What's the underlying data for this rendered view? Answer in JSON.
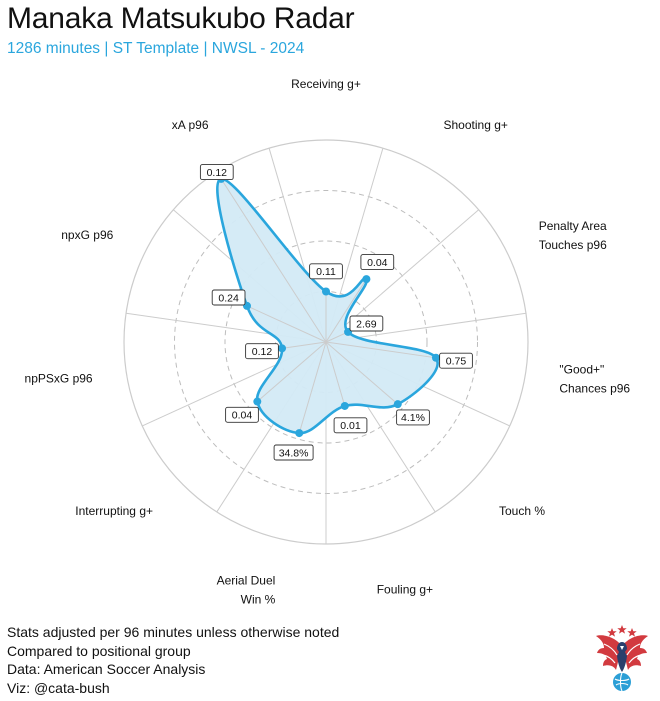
{
  "header": {
    "title": "Manaka Matsukubo Radar",
    "subtitle": "1286 minutes | ST Template | NWSL - 2024"
  },
  "footer_notes": [
    "Stats adjusted per 96 minutes unless otherwise noted",
    "Compared to positional group",
    "Data: American Soccer Analysis",
    "Viz: @cata-bush"
  ],
  "colors": {
    "accent": "#2aa6dd",
    "fill": "#d3eaf6",
    "grid": "#cccccc",
    "grid_dashed": "#bdbdbd",
    "logo_red": "#d23a3f",
    "logo_blue": "#2b9fd6"
  },
  "logo_icon": "eagle-soccer-ball-logo",
  "chart_data": {
    "type": "radar",
    "title": "Manaka Matsukubo Radar",
    "subtitle": "1286 minutes | ST Template | NWSL - 2024",
    "rlim": [
      0,
      100
    ],
    "grid": "dashed rings at 25, 50, 75; solid outer ring at 100",
    "categories": [
      [
        "Receiving g+"
      ],
      [
        "Shooting g+"
      ],
      [
        "Penalty Area",
        "Touches p96"
      ],
      [
        "\"Good+\"",
        "Chances p96"
      ],
      [
        "Touch %"
      ],
      [
        "Fouling g+"
      ],
      [
        "Aerial Duel",
        "Win %"
      ],
      [
        "Interrupting g+"
      ],
      [
        "npPSxG p96"
      ],
      [
        "npxG p96"
      ],
      [
        "xA p96"
      ]
    ],
    "series": [
      {
        "percentiles": [
          25,
          37,
          12,
          55,
          47,
          33,
          47,
          45,
          22,
          43,
          96
        ],
        "labels": [
          "0.11",
          "0.04",
          "2.69",
          "0.75",
          "4.1%",
          "0.01",
          "34.8%",
          "0.04",
          "0.12",
          "0.24",
          "0.12"
        ]
      }
    ]
  }
}
